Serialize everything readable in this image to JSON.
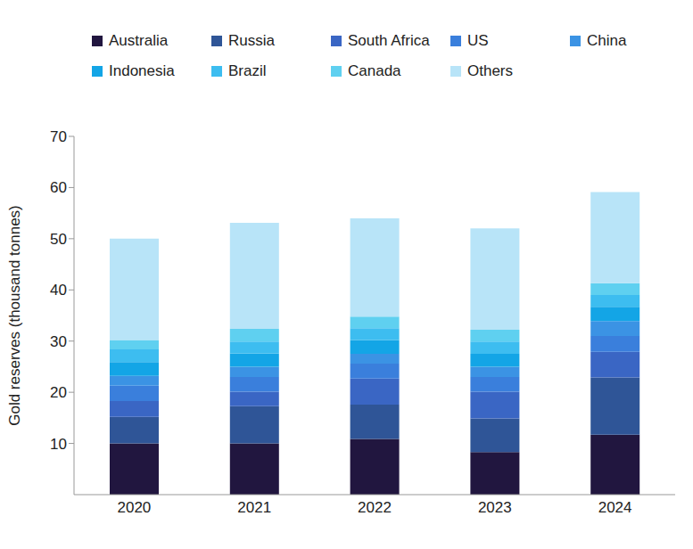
{
  "chart_data": {
    "type": "bar",
    "stacked": true,
    "y_label": "Gold reserves (thousand tonnes)",
    "categories": [
      "2020",
      "2021",
      "2022",
      "2023",
      "2024"
    ],
    "ylim": [
      0,
      70
    ],
    "yticks": [
      10,
      20,
      30,
      40,
      50,
      60,
      70
    ],
    "grid": false,
    "legend": "top",
    "series": [
      {
        "name": "Australia",
        "color": "#21163f",
        "values": [
          10.0,
          10.0,
          10.9,
          8.3,
          11.7
        ]
      },
      {
        "name": "Russia",
        "color": "#2f5597",
        "values": [
          5.2,
          7.3,
          6.7,
          6.6,
          11.2
        ]
      },
      {
        "name": "South Africa",
        "color": "#3a66c4",
        "values": [
          3.1,
          2.8,
          5.1,
          5.2,
          5.0
        ]
      },
      {
        "name": "US",
        "color": "#3a7fdc",
        "values": [
          3.0,
          2.9,
          2.9,
          2.9,
          3.1
        ]
      },
      {
        "name": "China",
        "color": "#3b93e4",
        "values": [
          1.9,
          2.0,
          1.9,
          2.0,
          2.9
        ]
      },
      {
        "name": "Indonesia",
        "color": "#13a5e6",
        "values": [
          2.7,
          2.6,
          2.7,
          2.5,
          2.8
        ]
      },
      {
        "name": "Brazil",
        "color": "#3dbdf0",
        "values": [
          2.5,
          2.3,
          2.3,
          2.4,
          2.3
        ]
      },
      {
        "name": "Canada",
        "color": "#5fd0f0",
        "values": [
          1.8,
          2.5,
          2.3,
          2.3,
          2.3
        ]
      },
      {
        "name": "Others",
        "color": "#b8e4f8",
        "values": [
          19.8,
          20.7,
          19.2,
          19.8,
          17.8
        ]
      }
    ]
  }
}
